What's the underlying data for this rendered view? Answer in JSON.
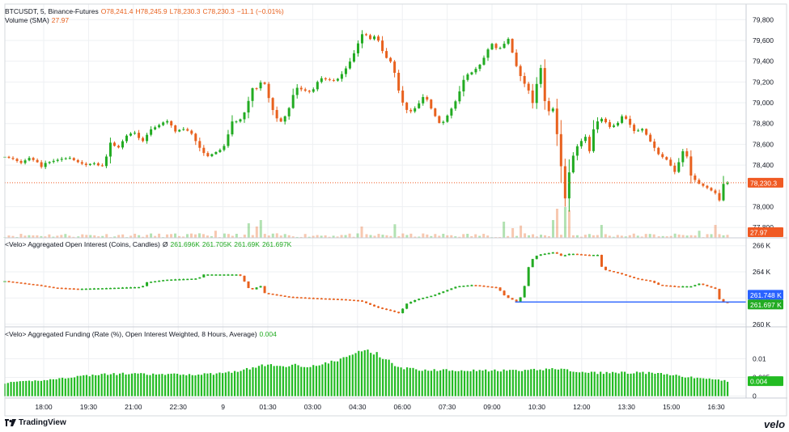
{
  "price_legend": {
    "symbol": "BTCUSDT, 5, Binance-Futures",
    "o": "O78,241.4",
    "h": "H78,245.9",
    "l": "L78,230.3",
    "c": "C78,230.3",
    "chg": "−11.1 (−0.01%)"
  },
  "volume_legend": {
    "name": "Volume (SMA)",
    "value": "27.97"
  },
  "oi_legend": {
    "name": "<Velo> Aggregated Open Interest (Coins, Candles)",
    "sym": "Ø",
    "o": "261.696K",
    "h": "261.705K",
    "l": "261.69K",
    "c": "261.697K"
  },
  "funding_legend": {
    "name": "<Velo> Aggregated Funding (Rate (%), Open Interest Weighted, 8 Hours, Average)",
    "value": "0.004"
  },
  "footer": {
    "brand": "TradingView",
    "logo_text": "velo"
  },
  "colors": {
    "up": "#22ab22",
    "down": "#e8611e",
    "price_tag": "#f05a23",
    "vol_tag": "#f05a23",
    "oi_blue_tag": "#2962ff",
    "oi_green_tag": "#22ab22",
    "funding_bar": "#22bb22",
    "grid": "#eef0f3",
    "axis_text": "#131722"
  },
  "chart_data": [
    {
      "name": "price",
      "type": "candlestick",
      "ylim": [
        77700,
        79950
      ],
      "ytick_labels": [
        "79,800",
        "79,600",
        "79,400",
        "79,200",
        "79,000",
        "78,800",
        "78,600",
        "78,400",
        "78,000",
        "77,800"
      ],
      "yticks": [
        79800,
        79600,
        79400,
        79200,
        79000,
        78800,
        78600,
        78400,
        78000,
        77800
      ],
      "last_price_label": "78,230.3",
      "last_price": 78230.3,
      "xtick_labels": [
        "18:00",
        "19:30",
        "21:00",
        "22:30",
        "9",
        "01:30",
        "03:00",
        "04:30",
        "06:00",
        "07:30",
        "09:00",
        "10:30",
        "12:00",
        "13:30",
        "15:00",
        "16:30"
      ],
      "path": [
        [
          0,
          78480
        ],
        [
          10,
          78460
        ],
        [
          20,
          78420
        ],
        [
          30,
          78470
        ],
        [
          40,
          78430
        ],
        [
          45,
          78380
        ],
        [
          50,
          78420
        ],
        [
          60,
          78440
        ],
        [
          70,
          78460
        ],
        [
          80,
          78470
        ],
        [
          90,
          78430
        ],
        [
          100,
          78400
        ],
        [
          110,
          78420
        ],
        [
          120,
          78380
        ],
        [
          125,
          78460
        ],
        [
          130,
          78620
        ],
        [
          140,
          78560
        ],
        [
          150,
          78680
        ],
        [
          160,
          78720
        ],
        [
          170,
          78620
        ],
        [
          180,
          78740
        ],
        [
          190,
          78780
        ],
        [
          200,
          78830
        ],
        [
          205,
          78800
        ],
        [
          210,
          78720
        ],
        [
          220,
          78750
        ],
        [
          230,
          78720
        ],
        [
          240,
          78580
        ],
        [
          250,
          78480
        ],
        [
          260,
          78520
        ],
        [
          270,
          78560
        ],
        [
          275,
          78640
        ],
        [
          280,
          78820
        ],
        [
          290,
          78820
        ],
        [
          300,
          78950
        ],
        [
          305,
          79150
        ],
        [
          310,
          79120
        ],
        [
          320,
          79230
        ],
        [
          330,
          78960
        ],
        [
          340,
          78800
        ],
        [
          350,
          78900
        ],
        [
          360,
          79150
        ],
        [
          370,
          79120
        ],
        [
          380,
          79100
        ],
        [
          390,
          79240
        ],
        [
          400,
          79220
        ],
        [
          410,
          79210
        ],
        [
          420,
          79300
        ],
        [
          430,
          79430
        ],
        [
          440,
          79620
        ],
        [
          445,
          79700
        ],
        [
          450,
          79600
        ],
        [
          460,
          79650
        ],
        [
          470,
          79450
        ],
        [
          480,
          79380
        ],
        [
          490,
          79040
        ],
        [
          500,
          78900
        ],
        [
          510,
          78960
        ],
        [
          520,
          79080
        ],
        [
          530,
          78910
        ],
        [
          540,
          78780
        ],
        [
          550,
          78900
        ],
        [
          560,
          79040
        ],
        [
          570,
          79260
        ],
        [
          580,
          79300
        ],
        [
          590,
          79380
        ],
        [
          600,
          79540
        ],
        [
          605,
          79580
        ],
        [
          610,
          79500
        ],
        [
          620,
          79580
        ],
        [
          625,
          79630
        ],
        [
          630,
          79420
        ],
        [
          640,
          79230
        ],
        [
          650,
          79100
        ],
        [
          655,
          78960
        ],
        [
          660,
          79260
        ],
        [
          665,
          79360
        ],
        [
          670,
          78900
        ],
        [
          680,
          78950
        ],
        [
          685,
          78620
        ],
        [
          690,
          78320
        ],
        [
          695,
          78010
        ],
        [
          700,
          78420
        ],
        [
          710,
          78600
        ],
        [
          720,
          78680
        ],
        [
          725,
          78500
        ],
        [
          730,
          78800
        ],
        [
          740,
          78850
        ],
        [
          750,
          78760
        ],
        [
          760,
          78810
        ],
        [
          765,
          78880
        ],
        [
          770,
          78840
        ],
        [
          780,
          78720
        ],
        [
          790,
          78750
        ],
        [
          800,
          78620
        ],
        [
          810,
          78500
        ],
        [
          820,
          78450
        ],
        [
          830,
          78330
        ],
        [
          840,
          78540
        ],
        [
          845,
          78480
        ],
        [
          850,
          78290
        ],
        [
          860,
          78220
        ],
        [
          870,
          78180
        ],
        [
          880,
          78130
        ],
        [
          885,
          78060
        ],
        [
          890,
          78220
        ],
        [
          895,
          78230
        ]
      ]
    },
    {
      "name": "volume",
      "type": "bar",
      "value_label": "27.97",
      "spikes": [
        [
          695,
          0.95
        ],
        [
          700,
          0.85
        ],
        [
          685,
          0.9
        ],
        [
          680,
          0.55
        ],
        [
          620,
          0.5
        ],
        [
          880,
          0.4
        ],
        [
          315,
          0.55
        ],
        [
          310,
          0.35
        ],
        [
          300,
          0.45
        ],
        [
          440,
          0.35
        ],
        [
          485,
          0.42
        ],
        [
          640,
          0.38
        ],
        [
          740,
          0.4
        ],
        [
          860,
          0.22
        ],
        [
          260,
          0.22
        ],
        [
          630,
          0.3
        ]
      ]
    },
    {
      "name": "open_interest",
      "type": "candlestick",
      "ylim": [
        259800,
        266600
      ],
      "ytick_labels": [
        "266 K",
        "264 K",
        "262 K",
        "260 K"
      ],
      "yticks": [
        266000,
        264000,
        262000,
        260000
      ],
      "blue_label": "261.748 K",
      "blue_value": 261748,
      "green_label": "261.697 K",
      "green_value": 261697,
      "path": [
        [
          0,
          263300
        ],
        [
          40,
          263000
        ],
        [
          60,
          262800
        ],
        [
          90,
          262700
        ],
        [
          120,
          262750
        ],
        [
          170,
          262850
        ],
        [
          175,
          263200
        ],
        [
          200,
          263400
        ],
        [
          240,
          263500
        ],
        [
          245,
          263800
        ],
        [
          290,
          263800
        ],
        [
          295,
          263500
        ],
        [
          300,
          262800
        ],
        [
          310,
          262600
        ],
        [
          315,
          263200
        ],
        [
          320,
          262400
        ],
        [
          350,
          262100
        ],
        [
          380,
          262000
        ],
        [
          420,
          261900
        ],
        [
          440,
          261800
        ],
        [
          460,
          261300
        ],
        [
          480,
          261000
        ],
        [
          490,
          260800
        ],
        [
          495,
          261500
        ],
        [
          510,
          261900
        ],
        [
          530,
          262200
        ],
        [
          560,
          262900
        ],
        [
          580,
          263000
        ],
        [
          610,
          262800
        ],
        [
          620,
          262100
        ],
        [
          635,
          261700
        ],
        [
          640,
          262200
        ],
        [
          645,
          263200
        ],
        [
          650,
          264800
        ],
        [
          660,
          265300
        ],
        [
          670,
          265400
        ],
        [
          680,
          265500
        ],
        [
          690,
          265200
        ],
        [
          700,
          265400
        ],
        [
          720,
          265300
        ],
        [
          735,
          265300
        ],
        [
          740,
          264200
        ],
        [
          760,
          263900
        ],
        [
          780,
          263500
        ],
        [
          800,
          263300
        ],
        [
          810,
          263000
        ],
        [
          830,
          262900
        ],
        [
          850,
          262900
        ],
        [
          860,
          263100
        ],
        [
          870,
          262900
        ],
        [
          880,
          262700
        ],
        [
          885,
          261900
        ],
        [
          890,
          261700
        ]
      ]
    },
    {
      "name": "funding",
      "type": "bar",
      "ylim": [
        -0.0005,
        0.0185
      ],
      "ytick_labels": [
        "0.01",
        "0.005",
        "0"
      ],
      "yticks": [
        0.01,
        0.005,
        0
      ],
      "value_label": "0.004",
      "path": [
        [
          0,
          0.0035
        ],
        [
          30,
          0.004
        ],
        [
          60,
          0.0045
        ],
        [
          90,
          0.0053
        ],
        [
          120,
          0.0058
        ],
        [
          150,
          0.006
        ],
        [
          180,
          0.0058
        ],
        [
          210,
          0.0058
        ],
        [
          240,
          0.0058
        ],
        [
          260,
          0.006
        ],
        [
          280,
          0.0065
        ],
        [
          300,
          0.0072
        ],
        [
          320,
          0.0083
        ],
        [
          340,
          0.008
        ],
        [
          360,
          0.0083
        ],
        [
          380,
          0.008
        ],
        [
          400,
          0.0088
        ],
        [
          415,
          0.0098
        ],
        [
          430,
          0.011
        ],
        [
          445,
          0.0125
        ],
        [
          460,
          0.0113
        ],
        [
          475,
          0.0095
        ],
        [
          490,
          0.0075
        ],
        [
          520,
          0.007
        ],
        [
          560,
          0.007
        ],
        [
          600,
          0.0068
        ],
        [
          640,
          0.0068
        ],
        [
          660,
          0.007
        ],
        [
          680,
          0.0075
        ],
        [
          700,
          0.0068
        ],
        [
          720,
          0.0062
        ],
        [
          760,
          0.0063
        ],
        [
          800,
          0.0062
        ],
        [
          830,
          0.0055
        ],
        [
          850,
          0.005
        ],
        [
          870,
          0.0047
        ],
        [
          895,
          0.004
        ]
      ]
    }
  ]
}
